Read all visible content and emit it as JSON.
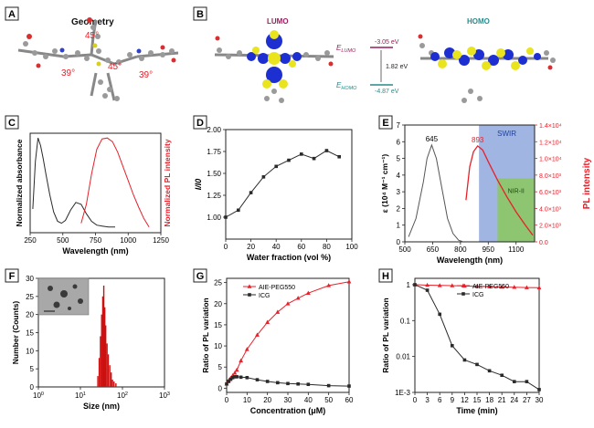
{
  "panels": {
    "A": {
      "letter": "A",
      "title": "Geometry",
      "angles": [
        "45°",
        "39°",
        "45°",
        "39°"
      ]
    },
    "B": {
      "letter": "B",
      "lumo_label": "LUMO",
      "homo_label": "HOMO",
      "e_lumo_label": "E",
      "e_lumo_sub": "LUMO",
      "e_lumo_value": "-3.05 eV",
      "gap": "1.82 eV",
      "e_homo_label": "E",
      "e_homo_sub": "HOMO",
      "e_homo_value": "-4.87 eV"
    }
  },
  "colors": {
    "black_series": "#2a2a2a",
    "red_series": "#e8202a",
    "red_axis": "#e8202a",
    "swir_band": "#8fa8dc",
    "nir2_band": "#8cc66a",
    "lumo_color": "#9c1c5c",
    "homo_color": "#2a8a8a",
    "orbital_blue": "#1d2fd0",
    "orbital_yellow": "#e9e41e"
  },
  "chart_data": [
    {
      "panel": "C",
      "type": "line",
      "xlabel": "Wavelength (nm)",
      "ylabel": "Normalized absorbance",
      "ylabel_right": "Normalized PL intensity",
      "xlim": [
        250,
        1250
      ],
      "xticks": [
        250,
        500,
        750,
        1000,
        1250
      ],
      "series": [
        {
          "x": [
            270,
            290,
            310,
            330,
            350,
            370,
            400,
            430,
            460,
            490,
            520,
            560,
            600,
            640,
            680,
            720,
            760,
            800,
            850,
            900
          ],
          "y": [
            0.25,
            0.75,
            1.0,
            0.92,
            0.78,
            0.62,
            0.4,
            0.22,
            0.12,
            0.1,
            0.13,
            0.24,
            0.32,
            0.3,
            0.2,
            0.12,
            0.08,
            0.07,
            0.06,
            0.06
          ]
        },
        {
          "x": [
            640,
            680,
            720,
            760,
            800,
            840,
            880,
            920,
            960,
            1000,
            1040,
            1080,
            1120,
            1160
          ],
          "y": [
            0.1,
            0.3,
            0.62,
            0.88,
            0.99,
            1.0,
            0.96,
            0.85,
            0.7,
            0.55,
            0.4,
            0.27,
            0.15,
            0.06
          ]
        }
      ]
    },
    {
      "panel": "D",
      "type": "line",
      "xlabel": "Water fraction (vol %)",
      "ylabel": "I/I0",
      "xlim": [
        0,
        100
      ],
      "ylim": [
        0.75,
        2.0
      ],
      "xticks": [
        0,
        20,
        40,
        60,
        80,
        100
      ],
      "yticks": [
        1.0,
        1.25,
        1.5,
        1.75,
        2.0
      ],
      "ytick_labels": [
        "1.00",
        "1.25",
        "1.50",
        "1.75",
        "2.00"
      ],
      "series": [
        {
          "x": [
            0,
            10,
            20,
            30,
            40,
            50,
            60,
            70,
            80,
            90
          ],
          "y": [
            1.0,
            1.08,
            1.28,
            1.46,
            1.58,
            1.65,
            1.72,
            1.67,
            1.76,
            1.69
          ]
        }
      ]
    },
    {
      "panel": "E",
      "type": "line",
      "xlabel": "Wavelength (nm)",
      "ylabel": "ε (10⁴ M⁻¹ cm⁻¹)",
      "ylabel_right": "PL intensity",
      "xlim": [
        500,
        1200
      ],
      "xticks": [
        500,
        650,
        800,
        950,
        1100
      ],
      "ylim": [
        0,
        7
      ],
      "yticks": [
        0,
        1,
        2,
        3,
        4,
        5,
        6,
        7
      ],
      "ylim_right": [
        0,
        14000
      ],
      "yticks_right": [
        "0.0",
        "2.0×10³",
        "4.0×10³",
        "6.0×10³",
        "8.0×10³",
        "1.0×10⁴",
        "1.2×10⁴",
        "1.4×10⁴"
      ],
      "bands": [
        {
          "label": "SWIR",
          "from": 900,
          "to": 1200
        },
        {
          "label": "NIR-II",
          "from": 1000,
          "to": 1200
        }
      ],
      "annotations": [
        "645",
        "893"
      ],
      "series": [
        {
          "x": [
            520,
            560,
            600,
            620,
            645,
            670,
            700,
            730,
            760,
            790,
            810
          ],
          "y": [
            0.3,
            1.4,
            3.6,
            5.0,
            5.8,
            5.0,
            3.2,
            1.4,
            0.5,
            0.1,
            0.02
          ]
        },
        {
          "x": [
            830,
            850,
            870,
            893,
            920,
            950,
            1000,
            1050,
            1100,
            1150,
            1190
          ],
          "y": [
            5000,
            9000,
            10800,
            11500,
            11000,
            9600,
            7400,
            5400,
            3600,
            2000,
            800
          ]
        }
      ]
    },
    {
      "panel": "F",
      "type": "bar",
      "xlabel": "Size (nm)",
      "ylabel": "Number (Counts)",
      "xscale": "log",
      "xlim": [
        1,
        1000
      ],
      "ylim": [
        0,
        30
      ],
      "yticks": [
        0,
        5,
        10,
        15,
        20,
        25,
        30
      ],
      "x": [
        26,
        28,
        30,
        32,
        34,
        36,
        38,
        40,
        43,
        46,
        50,
        54,
        58,
        63,
        70
      ],
      "values": [
        3,
        8,
        14,
        20,
        25,
        28,
        22,
        17,
        12,
        9,
        6,
        4,
        2,
        1.5,
        1
      ]
    },
    {
      "panel": "G",
      "type": "line",
      "xlabel": "Concentration (μM)",
      "ylabel": "Ratio of PL variation",
      "xlim": [
        0,
        60
      ],
      "ylim": [
        0,
        25
      ],
      "xticks": [
        0,
        10,
        20,
        30,
        40,
        50,
        60
      ],
      "yticks": [
        0,
        5,
        10,
        15,
        20,
        25
      ],
      "legend_position": "top-left",
      "series": [
        {
          "name": "AIE-PEG550",
          "x": [
            0,
            1,
            2,
            3,
            4,
            5,
            7,
            10,
            15,
            20,
            25,
            30,
            35,
            40,
            50,
            60
          ],
          "y": [
            1,
            1.8,
            2.4,
            3.0,
            3.6,
            4.3,
            6.5,
            9.2,
            12.6,
            15.6,
            18.0,
            20.0,
            21.3,
            22.5,
            24.3,
            25.2
          ]
        },
        {
          "name": "ICG",
          "x": [
            0,
            1,
            2,
            3,
            4,
            5,
            7,
            10,
            15,
            20,
            25,
            30,
            35,
            40,
            50,
            60
          ],
          "y": [
            1,
            1.6,
            2.1,
            2.5,
            2.7,
            2.7,
            2.6,
            2.5,
            2.0,
            1.6,
            1.3,
            1.1,
            1.0,
            0.9,
            0.6,
            0.5
          ]
        }
      ]
    },
    {
      "panel": "H",
      "type": "line",
      "xlabel": "Time (min)",
      "ylabel": "Ratio of PL variation",
      "yscale": "log",
      "xlim": [
        0,
        30
      ],
      "ylim": [
        0.001,
        1.5
      ],
      "xticks": [
        0,
        3,
        6,
        9,
        12,
        15,
        18,
        21,
        24,
        27,
        30
      ],
      "ytick_labels": [
        "1E-3",
        "0.01",
        "0.1",
        "1"
      ],
      "legend_position": "top-right",
      "series": [
        {
          "name": "AIE-PEG550",
          "x": [
            0,
            3,
            6,
            9,
            12,
            15,
            18,
            21,
            24,
            27,
            30
          ],
          "y": [
            1.0,
            0.97,
            0.95,
            0.94,
            0.92,
            0.9,
            0.88,
            0.86,
            0.85,
            0.83,
            0.82
          ]
        },
        {
          "name": "ICG",
          "x": [
            0,
            3,
            6,
            9,
            12,
            15,
            18,
            21,
            24,
            27,
            30
          ],
          "y": [
            1.0,
            0.7,
            0.15,
            0.02,
            0.008,
            0.006,
            0.004,
            0.003,
            0.002,
            0.002,
            0.0012
          ]
        }
      ]
    }
  ]
}
